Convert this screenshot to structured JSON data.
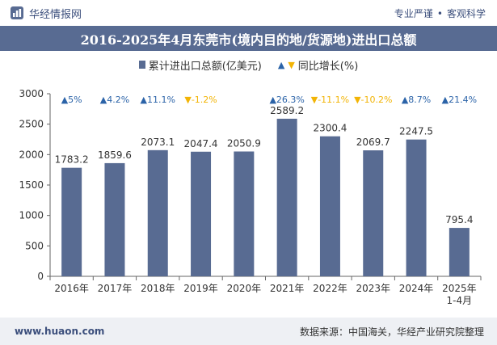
{
  "header": {
    "brand": "华经情报网",
    "tags": [
      "专业严谨",
      "客观科学"
    ]
  },
  "title": "2016-2025年4月东莞市(境内目的地/货源地)进出口总额",
  "legend": {
    "bar_label": "累计进出口总额(亿美元)",
    "line_label": "同比增长(%)"
  },
  "colors": {
    "bar": "#586b92",
    "up": "#2b63a8",
    "down": "#f2b405",
    "title_bg": "#586b92"
  },
  "chart_data": {
    "type": "bar",
    "categories": [
      "2016年",
      "2017年",
      "2018年",
      "2019年",
      "2020年",
      "2021年",
      "2022年",
      "2023年",
      "2024年",
      "2025年\n1-4月"
    ],
    "series": [
      {
        "name": "累计进出口总额(亿美元)",
        "values": [
          1783.2,
          1859.6,
          2073.1,
          2047.4,
          2050.9,
          2589.2,
          2300.4,
          2069.7,
          2247.5,
          795.4
        ],
        "value_labels": [
          "1783.2",
          "1859.6",
          "2073.1",
          "2047.4",
          "2050.9",
          "2589.2",
          "2300.4",
          "2069.7",
          "2247.5",
          "795.4"
        ]
      },
      {
        "name": "同比增长(%)",
        "values": [
          5,
          4.2,
          11.1,
          -1.2,
          null,
          26.3,
          -11.1,
          -10.2,
          8.7,
          21.4
        ],
        "value_labels": [
          "5%",
          "4.2%",
          "11.1%",
          "-1.2%",
          "",
          "26.3%",
          "-11.1%",
          "-10.2%",
          "8.7%",
          "21.4%"
        ]
      }
    ],
    "ylim": [
      0,
      3000
    ],
    "yticks": [
      0,
      500,
      1000,
      1500,
      2000,
      2500,
      3000
    ],
    "grid": false,
    "legend_position": "top"
  },
  "footer": {
    "website": "www.huaon.com",
    "source": "数据来源：中国海关，华经产业研究院整理"
  }
}
